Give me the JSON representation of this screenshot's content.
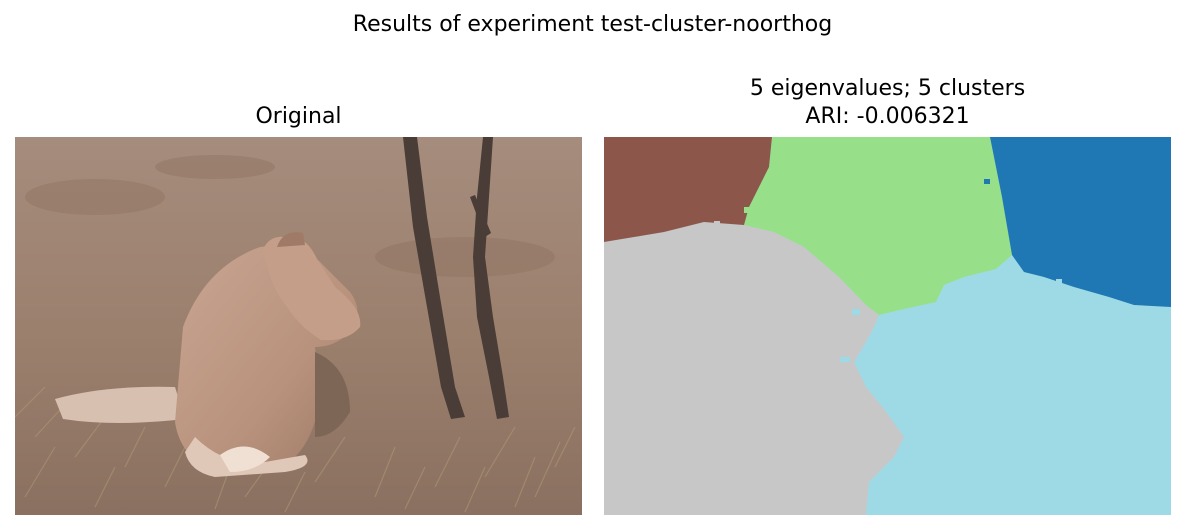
{
  "figure": {
    "suptitle": "Results of experiment test-cluster-noorthog"
  },
  "panels": [
    {
      "title": "Original",
      "content": "photograph"
    },
    {
      "title_line1": "5 eigenvalues; 5 clusters",
      "title_line2": "ARI: -0.006321",
      "content": "cluster-segmentation-map",
      "cluster_colors": [
        "#8c564b",
        "#98df8a",
        "#1f77b4",
        "#c7c7c7",
        "#9edae5"
      ]
    }
  ]
}
